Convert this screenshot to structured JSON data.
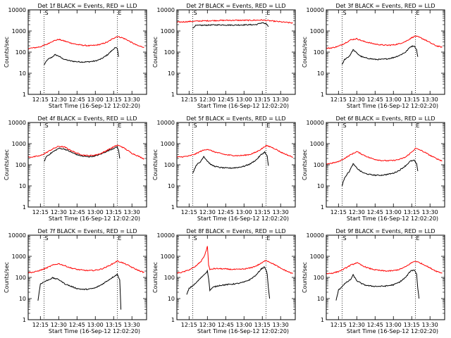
{
  "figure": {
    "x_tick_labels": [
      "12:15",
      "12:30",
      "12:45",
      "13:00",
      "13:15",
      "13:30"
    ],
    "y_tick_labels": [
      "1",
      "10",
      "100",
      "1000",
      "10000"
    ],
    "ylabel": "Counts/sec",
    "xlabel": "Start Time (16-Sep-12 12:02:20)",
    "marker_labels": [
      "S",
      "E"
    ],
    "colors": {
      "events": "#000000",
      "lld": "#ff0000",
      "background": "#ffffff"
    }
  },
  "chart_data": [
    {
      "type": "line",
      "title": "Det 1f BLACK = Events, RED = LLD",
      "xlabel": "Start Time (16-Sep-12 12:02:20)",
      "ylabel": "Counts/sec",
      "yscale": "log",
      "ylim": [
        1,
        10000
      ],
      "xlim": [
        "12:05",
        "13:42"
      ],
      "vlines": [
        "12:18",
        "13:18"
      ],
      "markers": {
        "S": "12:18",
        "E": "13:18"
      },
      "series": [
        {
          "name": "BLACK = Events",
          "color": "#000000",
          "x": [
            "12:18",
            "12:21",
            "12:24",
            "12:27",
            "12:30",
            "12:33",
            "12:36",
            "12:40",
            "12:45",
            "12:50",
            "12:55",
            "13:00",
            "13:05",
            "13:10",
            "13:13",
            "13:16",
            "13:18",
            "13:19"
          ],
          "y": [
            25,
            45,
            55,
            75,
            65,
            50,
            43,
            38,
            35,
            34,
            35,
            38,
            48,
            75,
            110,
            160,
            150,
            60
          ]
        },
        {
          "name": "RED = LLD",
          "color": "#ff0000",
          "x": [
            "12:05",
            "12:10",
            "12:15",
            "12:20",
            "12:25",
            "12:30",
            "12:35",
            "12:40",
            "12:45",
            "12:50",
            "12:55",
            "13:00",
            "13:05",
            "13:10",
            "13:15",
            "13:18",
            "13:22",
            "13:26",
            "13:30",
            "13:35",
            "13:40"
          ],
          "y": [
            150,
            160,
            180,
            230,
            330,
            400,
            330,
            270,
            230,
            210,
            200,
            210,
            240,
            300,
            460,
            550,
            480,
            380,
            280,
            200,
            170
          ]
        }
      ]
    },
    {
      "type": "line",
      "title": "Det 2f BLACK = Events, RED = LLD",
      "xlabel": "Start Time (16-Sep-12 12:02:20)",
      "ylabel": "Counts/sec",
      "yscale": "log",
      "ylim": [
        1,
        10000
      ],
      "xlim": [
        "12:05",
        "13:42"
      ],
      "vlines": [
        "12:18",
        "13:18"
      ],
      "markers": {
        "S": "12:18",
        "E": "13:18"
      },
      "series": [
        {
          "name": "BLACK = Events",
          "color": "#000000",
          "x": [
            "12:18",
            "12:20",
            "12:30",
            "12:40",
            "12:50",
            "13:00",
            "13:10",
            "13:15",
            "13:19",
            "13:20"
          ],
          "y": [
            1300,
            1800,
            1900,
            1950,
            1900,
            1950,
            2000,
            2500,
            2000,
            1600
          ]
        },
        {
          "name": "RED = LLD",
          "color": "#ff0000",
          "x": [
            "12:05",
            "12:15",
            "12:25",
            "12:35",
            "12:45",
            "12:55",
            "13:05",
            "13:15",
            "13:20",
            "13:30",
            "13:40"
          ],
          "y": [
            2600,
            2800,
            3000,
            3100,
            3200,
            3200,
            3200,
            3300,
            3100,
            2700,
            2400
          ]
        }
      ]
    },
    {
      "type": "line",
      "title": "Det 3f BLACK = Events, RED = LLD",
      "xlabel": "Start Time (16-Sep-12 12:02:20)",
      "ylabel": "Counts/sec",
      "yscale": "log",
      "ylim": [
        1,
        10000
      ],
      "xlim": [
        "12:05",
        "13:42"
      ],
      "vlines": [
        "12:18",
        "13:18"
      ],
      "markers": {
        "S": "12:18",
        "E": "13:18"
      },
      "series": [
        {
          "name": "BLACK = Events",
          "color": "#000000",
          "x": [
            "12:18",
            "12:20",
            "12:24",
            "12:27",
            "12:30",
            "12:33",
            "12:36",
            "12:40",
            "12:45",
            "12:50",
            "12:55",
            "13:00",
            "13:05",
            "13:10",
            "13:14",
            "13:17",
            "13:19",
            "13:20"
          ],
          "y": [
            25,
            45,
            65,
            130,
            90,
            65,
            55,
            50,
            45,
            45,
            48,
            55,
            70,
            100,
            180,
            200,
            130,
            60
          ]
        },
        {
          "name": "RED = LLD",
          "color": "#ff0000",
          "x": [
            "12:05",
            "12:10",
            "12:15",
            "12:20",
            "12:25",
            "12:30",
            "12:35",
            "12:40",
            "12:45",
            "12:50",
            "12:55",
            "13:00",
            "13:05",
            "13:10",
            "13:15",
            "13:18",
            "13:22",
            "13:26",
            "13:30",
            "13:35",
            "13:40"
          ],
          "y": [
            150,
            160,
            190,
            260,
            380,
            430,
            330,
            280,
            240,
            220,
            210,
            220,
            250,
            320,
            480,
            580,
            480,
            380,
            280,
            200,
            170
          ]
        }
      ]
    },
    {
      "type": "line",
      "title": "Det 4f BLACK = Events, RED = LLD",
      "xlabel": "Start Time (16-Sep-12 12:02:20)",
      "ylabel": "Counts/sec",
      "yscale": "log",
      "ylim": [
        1,
        10000
      ],
      "xlim": [
        "12:05",
        "13:42"
      ],
      "vlines": [
        "12:18",
        "13:18"
      ],
      "markers": {
        "S": "12:18",
        "E": "13:18"
      },
      "series": [
        {
          "name": "BLACK = Events",
          "color": "#000000",
          "x": [
            "12:18",
            "12:20",
            "12:25",
            "12:30",
            "12:35",
            "12:40",
            "12:45",
            "12:50",
            "12:55",
            "13:00",
            "13:05",
            "13:10",
            "13:15",
            "13:18",
            "13:19",
            "13:20"
          ],
          "y": [
            140,
            250,
            400,
            600,
            550,
            400,
            300,
            250,
            240,
            260,
            330,
            450,
            600,
            700,
            500,
            200
          ]
        },
        {
          "name": "RED = LLD",
          "color": "#ff0000",
          "x": [
            "12:05",
            "12:10",
            "12:15",
            "12:20",
            "12:25",
            "12:30",
            "12:35",
            "12:40",
            "12:45",
            "12:50",
            "12:55",
            "13:00",
            "13:05",
            "13:10",
            "13:15",
            "13:18",
            "13:22",
            "13:26",
            "13:30",
            "13:35",
            "13:40"
          ],
          "y": [
            230,
            240,
            270,
            380,
            560,
            750,
            680,
            480,
            350,
            290,
            270,
            290,
            350,
            500,
            700,
            850,
            700,
            500,
            350,
            260,
            190
          ]
        }
      ]
    },
    {
      "type": "line",
      "title": "Det 5f BLACK = Events, RED = LLD",
      "xlabel": "Start Time (16-Sep-12 12:02:20)",
      "ylabel": "Counts/sec",
      "yscale": "log",
      "ylim": [
        1,
        10000
      ],
      "xlim": [
        "12:05",
        "13:42"
      ],
      "vlines": [
        "12:18",
        "13:18"
      ],
      "markers": {
        "S": "12:18",
        "E": "13:18"
      },
      "series": [
        {
          "name": "BLACK = Events",
          "color": "#000000",
          "x": [
            "12:18",
            "12:21",
            "12:24",
            "12:27",
            "12:30",
            "12:33",
            "12:36",
            "12:40",
            "12:45",
            "12:50",
            "12:55",
            "13:00",
            "13:05",
            "13:10",
            "13:14",
            "13:17",
            "13:19",
            "13:20"
          ],
          "y": [
            40,
            100,
            130,
            250,
            150,
            100,
            85,
            75,
            70,
            70,
            75,
            85,
            110,
            170,
            300,
            400,
            250,
            90
          ]
        },
        {
          "name": "RED = LLD",
          "color": "#ff0000",
          "x": [
            "12:05",
            "12:10",
            "12:15",
            "12:20",
            "12:25",
            "12:30",
            "12:35",
            "12:40",
            "12:45",
            "12:50",
            "12:55",
            "13:00",
            "13:05",
            "13:10",
            "13:15",
            "13:18",
            "13:22",
            "13:26",
            "13:30",
            "13:35",
            "13:40"
          ],
          "y": [
            230,
            240,
            260,
            320,
            450,
            550,
            420,
            350,
            300,
            280,
            270,
            280,
            310,
            400,
            600,
            800,
            700,
            550,
            400,
            300,
            230
          ]
        }
      ]
    },
    {
      "type": "line",
      "title": "Det 6f BLACK = Events, RED = LLD",
      "xlabel": "Start Time (16-Sep-12 12:02:20)",
      "ylabel": "Counts/sec",
      "yscale": "log",
      "ylim": [
        1,
        10000
      ],
      "xlim": [
        "12:05",
        "13:42"
      ],
      "vlines": [
        "12:18",
        "13:18"
      ],
      "markers": {
        "S": "12:18",
        "E": "13:18"
      },
      "series": [
        {
          "name": "BLACK = Events",
          "color": "#000000",
          "x": [
            "12:18",
            "12:20",
            "12:24",
            "12:27",
            "12:30",
            "12:33",
            "12:36",
            "12:40",
            "12:45",
            "12:50",
            "12:55",
            "13:00",
            "13:05",
            "13:10",
            "13:14",
            "13:17",
            "13:19",
            "13:20"
          ],
          "y": [
            10,
            25,
            50,
            110,
            70,
            50,
            40,
            35,
            32,
            32,
            35,
            40,
            55,
            90,
            150,
            160,
            110,
            50
          ]
        },
        {
          "name": "RED = LLD",
          "color": "#ff0000",
          "x": [
            "12:05",
            "12:10",
            "12:15",
            "12:20",
            "12:25",
            "12:30",
            "12:35",
            "12:40",
            "12:45",
            "12:50",
            "12:55",
            "13:00",
            "13:05",
            "13:10",
            "13:15",
            "13:18",
            "13:22",
            "13:26",
            "13:30",
            "13:35",
            "13:40"
          ],
          "y": [
            110,
            120,
            140,
            200,
            300,
            420,
            300,
            220,
            180,
            160,
            155,
            160,
            180,
            230,
            400,
            600,
            500,
            380,
            280,
            200,
            150
          ]
        }
      ]
    },
    {
      "type": "line",
      "title": "Det 7f BLACK = Events, RED = LLD",
      "xlabel": "Start Time (16-Sep-12 12:02:20)",
      "ylabel": "Counts/sec",
      "yscale": "log",
      "ylim": [
        1,
        10000
      ],
      "xlim": [
        "12:05",
        "13:42"
      ],
      "vlines": [
        "12:18",
        "13:18"
      ],
      "markers": {
        "S": "12:18",
        "E": "13:18"
      },
      "series": [
        {
          "name": "BLACK = Events",
          "color": "#000000",
          "x": [
            "12:13",
            "12:15",
            "12:20",
            "12:25",
            "12:30",
            "12:35",
            "12:40",
            "12:45",
            "12:50",
            "12:55",
            "13:00",
            "13:05",
            "13:10",
            "13:15",
            "13:18",
            "13:20",
            "13:21"
          ],
          "y": [
            8,
            50,
            70,
            95,
            80,
            50,
            38,
            30,
            27,
            28,
            32,
            45,
            70,
            110,
            140,
            80,
            3
          ]
        },
        {
          "name": "RED = LLD",
          "color": "#ff0000",
          "x": [
            "12:05",
            "12:10",
            "12:15",
            "12:20",
            "12:25",
            "12:30",
            "12:35",
            "12:40",
            "12:45",
            "12:50",
            "12:55",
            "13:00",
            "13:05",
            "13:10",
            "13:15",
            "13:18",
            "13:22",
            "13:26",
            "13:30",
            "13:35",
            "13:40"
          ],
          "y": [
            170,
            180,
            220,
            280,
            380,
            450,
            360,
            280,
            240,
            220,
            210,
            220,
            250,
            330,
            470,
            600,
            500,
            400,
            300,
            220,
            170
          ]
        }
      ]
    },
    {
      "type": "line",
      "title": "Det 8f BLACK = Events, RED = LLD",
      "xlabel": "Start Time (16-Sep-12 12:02:20)",
      "ylabel": "Counts/sec",
      "yscale": "log",
      "ylim": [
        1,
        10000
      ],
      "xlim": [
        "12:05",
        "13:42"
      ],
      "vlines": [
        "12:18",
        "13:18"
      ],
      "markers": {
        "S": "12:18",
        "E": "13:18"
      },
      "series": [
        {
          "name": "BLACK = Events",
          "color": "#000000",
          "x": [
            "12:13",
            "12:15",
            "12:20",
            "12:25",
            "12:28",
            "12:30",
            "12:31",
            "12:32",
            "12:35",
            "12:40",
            "12:45",
            "12:50",
            "12:55",
            "13:00",
            "13:05",
            "13:10",
            "13:14",
            "13:17",
            "13:19",
            "13:20",
            "13:21"
          ],
          "y": [
            15,
            30,
            50,
            100,
            150,
            200,
            90,
            25,
            35,
            42,
            45,
            48,
            52,
            60,
            80,
            130,
            250,
            320,
            150,
            30,
            10
          ]
        },
        {
          "name": "RED = LLD",
          "color": "#ff0000",
          "x": [
            "12:05",
            "12:10",
            "12:15",
            "12:20",
            "12:25",
            "12:28",
            "12:30",
            "12:31",
            "12:32",
            "12:35",
            "12:40",
            "12:45",
            "12:50",
            "12:55",
            "13:00",
            "13:05",
            "13:10",
            "13:15",
            "13:18",
            "13:22",
            "13:26",
            "13:30",
            "13:35",
            "13:40"
          ],
          "y": [
            160,
            180,
            230,
            320,
            600,
            1200,
            3000,
            400,
            230,
            260,
            260,
            250,
            240,
            240,
            250,
            280,
            350,
            500,
            650,
            500,
            380,
            270,
            200,
            150
          ]
        }
      ]
    },
    {
      "type": "line",
      "title": "Det 9f BLACK = Events, RED = LLD",
      "xlabel": "Start Time (16-Sep-12 12:02:20)",
      "ylabel": "Counts/sec",
      "yscale": "log",
      "ylim": [
        1,
        10000
      ],
      "xlim": [
        "12:05",
        "13:42"
      ],
      "vlines": [
        "12:18",
        "13:18"
      ],
      "markers": {
        "S": "12:18",
        "E": "13:18"
      },
      "series": [
        {
          "name": "BLACK = Events",
          "color": "#000000",
          "x": [
            "12:13",
            "12:15",
            "12:20",
            "12:25",
            "12:27",
            "12:30",
            "12:33",
            "12:36",
            "12:40",
            "12:45",
            "12:50",
            "12:55",
            "13:00",
            "13:05",
            "13:10",
            "13:14",
            "13:17",
            "13:19",
            "13:20",
            "13:21"
          ],
          "y": [
            8,
            25,
            50,
            80,
            130,
            70,
            55,
            45,
            40,
            38,
            38,
            40,
            45,
            60,
            100,
            200,
            230,
            150,
            30,
            10
          ]
        },
        {
          "name": "RED = LLD",
          "color": "#ff0000",
          "x": [
            "12:05",
            "12:10",
            "12:15",
            "12:20",
            "12:25",
            "12:30",
            "12:35",
            "12:40",
            "12:45",
            "12:50",
            "12:55",
            "13:00",
            "13:05",
            "13:10",
            "13:15",
            "13:18",
            "13:22",
            "13:26",
            "13:30",
            "13:35",
            "13:40"
          ],
          "y": [
            150,
            160,
            190,
            260,
            380,
            500,
            350,
            270,
            230,
            210,
            200,
            210,
            240,
            320,
            500,
            600,
            480,
            380,
            280,
            200,
            160
          ]
        }
      ]
    }
  ]
}
